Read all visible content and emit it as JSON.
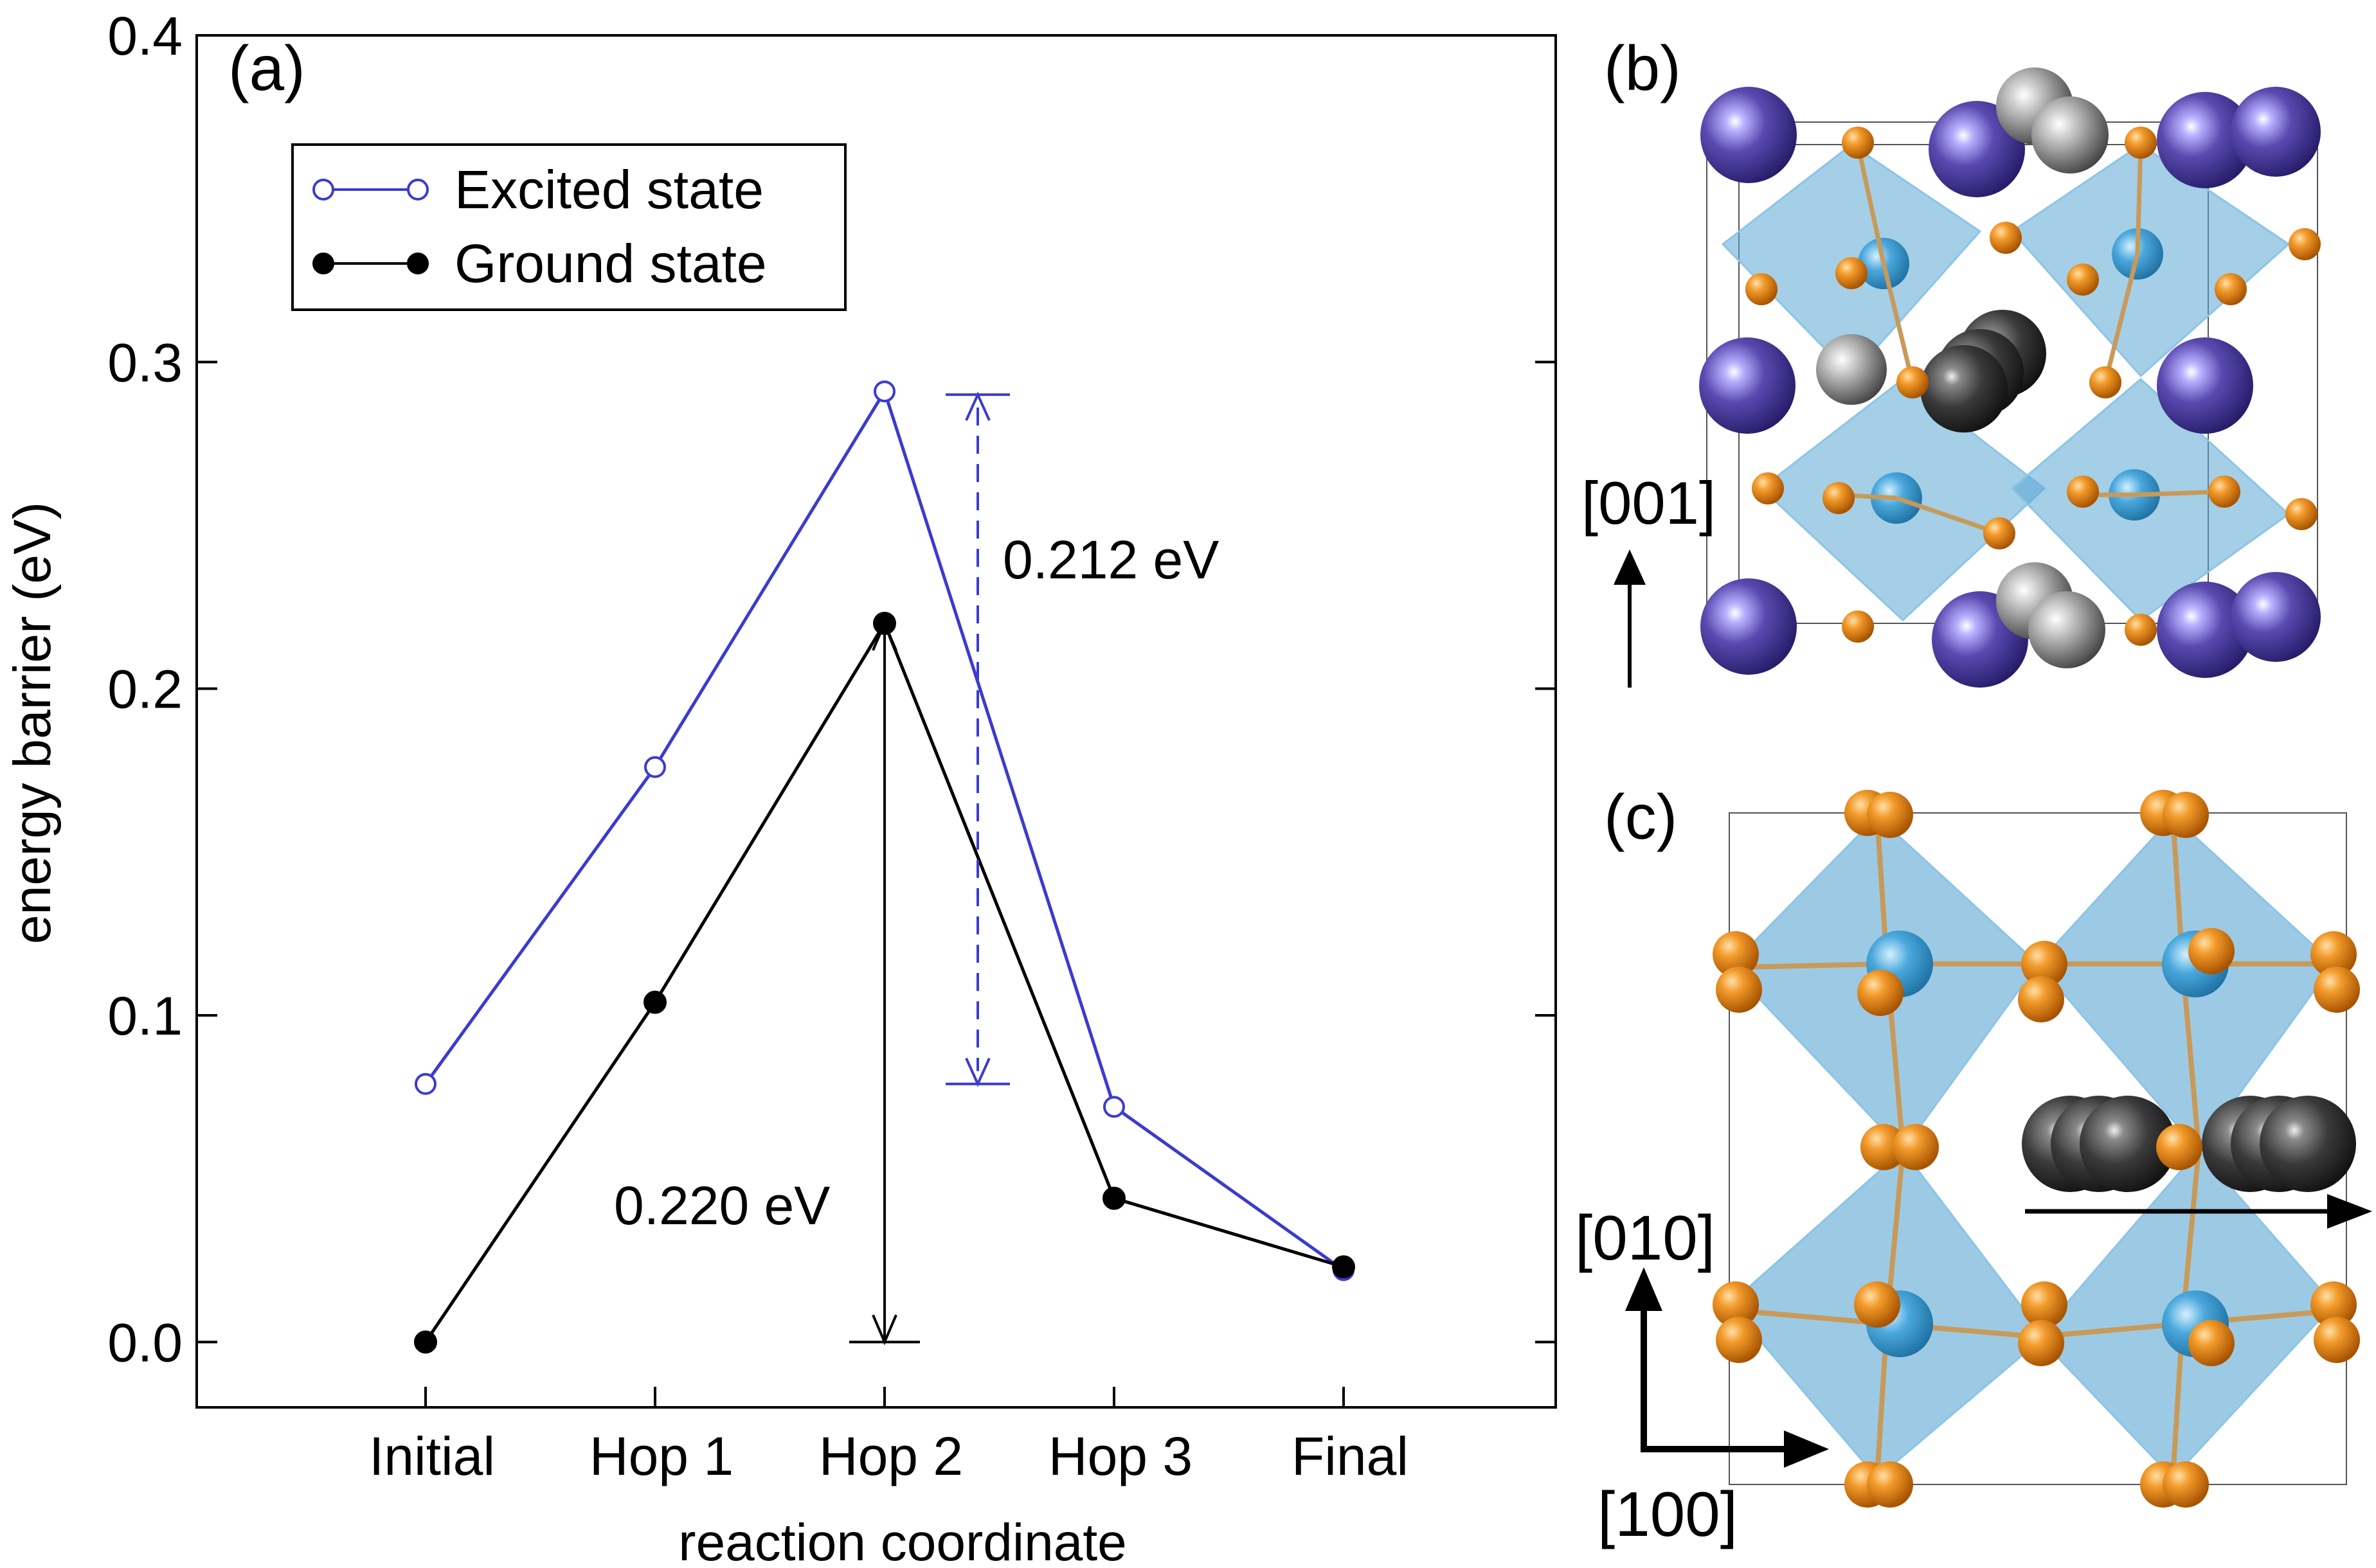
{
  "chart_data": {
    "type": "line",
    "panel_label": "(a)",
    "categories": [
      "Initial",
      "Hop 1",
      "Hop 2",
      "Hop 3",
      "Final"
    ],
    "xlabel": "reaction coordinate",
    "ylabel": "energy barrier (eV)",
    "ylim": [
      -0.02,
      0.4
    ],
    "yticks": [
      0.0,
      0.1,
      0.2,
      0.3,
      0.4
    ],
    "ytick_labels": [
      "0.0",
      "0.1",
      "0.2",
      "0.3",
      "0.4"
    ],
    "legend_position": "top-left",
    "series": [
      {
        "name": "Excited state",
        "color": "#3b3bcf",
        "marker": "open-circle",
        "values": [
          0.079,
          0.176,
          0.291,
          0.072,
          0.022
        ]
      },
      {
        "name": "Ground state",
        "color": "#000000",
        "marker": "filled-circle",
        "values": [
          0.0,
          0.104,
          0.22,
          0.044,
          0.023
        ]
      }
    ],
    "annotations": [
      {
        "text": "0.212 eV",
        "color": "#3b3bcf",
        "style": "dashed double arrow",
        "from": 0.079,
        "to": 0.29,
        "at_category": "Hop 2"
      },
      {
        "text": "0.220 eV",
        "color": "#000000",
        "style": "solid double arrow",
        "from": 0.0,
        "to": 0.22,
        "at_category": "Hop 2"
      }
    ]
  },
  "panel_b": {
    "label": "(b)",
    "axis_label": "[001]"
  },
  "panel_c": {
    "label": "(c)",
    "axis_label_vertical": "[010]",
    "axis_label_horizontal": "[100]"
  },
  "colors": {
    "octahedron": "#5aa7d4",
    "oxygen": "#e5820e",
    "b_site": "#4aa8dc",
    "a_site": "#5a4ab0",
    "grey_atom": "#8a8a8a",
    "dark_atom": "#3a3a3a"
  }
}
